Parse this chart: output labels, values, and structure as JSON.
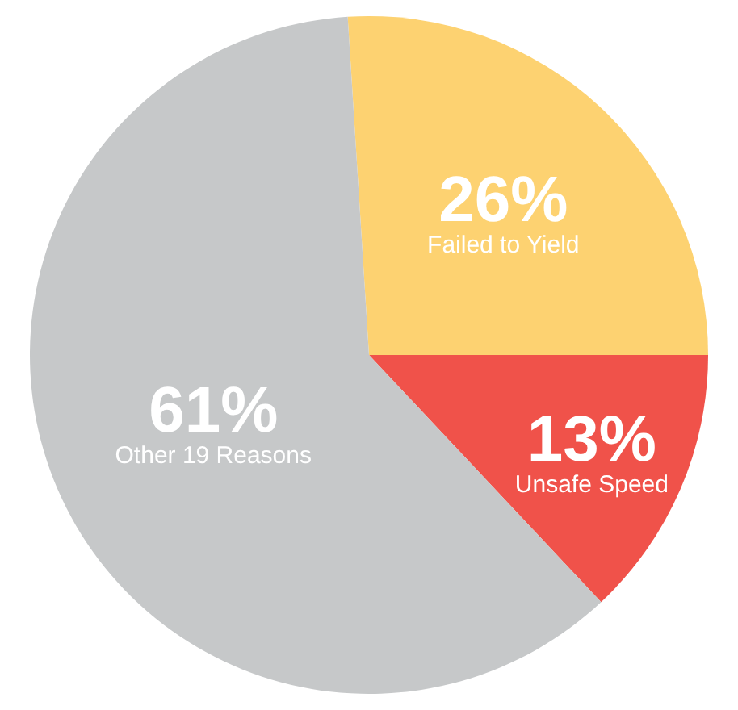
{
  "chart_data": {
    "type": "pie",
    "categories": [
      "Unsafe Speed",
      "Failed to Yield",
      "Other 19 Reasons"
    ],
    "values": [
      13,
      26,
      61
    ],
    "colors": [
      "#f0524a",
      "#fdd271",
      "#c6c8c9"
    ],
    "value_labels": [
      "13%",
      "26%",
      "61%"
    ],
    "legend": false
  }
}
